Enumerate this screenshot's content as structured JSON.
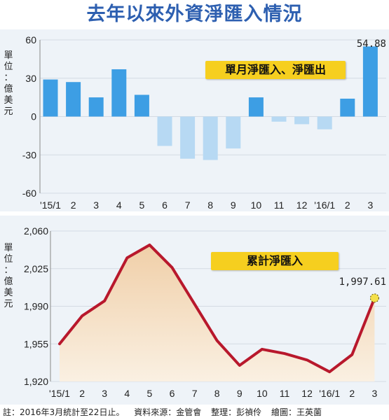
{
  "title": "去年以來外資淨匯入情況",
  "chart_data": [
    {
      "type": "bar",
      "title": "單月淨匯入、淨匯出",
      "unit_label": "單位：億美元",
      "categories": [
        "'15/1",
        "2",
        "3",
        "4",
        "5",
        "6",
        "7",
        "8",
        "9",
        "10",
        "11",
        "12",
        "'16/1",
        "2",
        "3"
      ],
      "values": [
        29,
        27,
        15,
        37,
        17,
        -23,
        -33,
        -34,
        -25,
        15,
        -4,
        -6,
        -10,
        14,
        54.88
      ],
      "ylim": [
        -60,
        60
      ],
      "yticks": [
        "60",
        "30",
        "0",
        "-30",
        "-60"
      ],
      "annotation": "54.88",
      "colors": {
        "positive": "#3d9ee4",
        "negative": "#b7d9f3"
      }
    },
    {
      "type": "area",
      "title": "累計淨匯入",
      "unit_label": "單位：億美元",
      "categories": [
        "'15/1",
        "2",
        "3",
        "4",
        "5",
        "6",
        "7",
        "8",
        "9",
        "10",
        "11",
        "12",
        "'16/1",
        "2",
        "3"
      ],
      "values": [
        1955,
        1981,
        1995,
        2035,
        2047,
        2026,
        1992,
        1958,
        1935,
        1950,
        1946,
        1940,
        1929,
        1945,
        1997.61
      ],
      "ylim": [
        1920,
        2060
      ],
      "yticks": [
        "2,060",
        "2,025",
        "1,990",
        "1,955",
        "1,920"
      ],
      "annotation": "1,997.61",
      "colors": {
        "line": "#b8182c",
        "fill": "#f3dcc0"
      }
    }
  ],
  "footer": {
    "note": "註：2016年3月統計至22日止。",
    "source": "資料來源：金管會",
    "editor": "整理：彭禎伶",
    "artist": "繪圖：王英薗"
  }
}
